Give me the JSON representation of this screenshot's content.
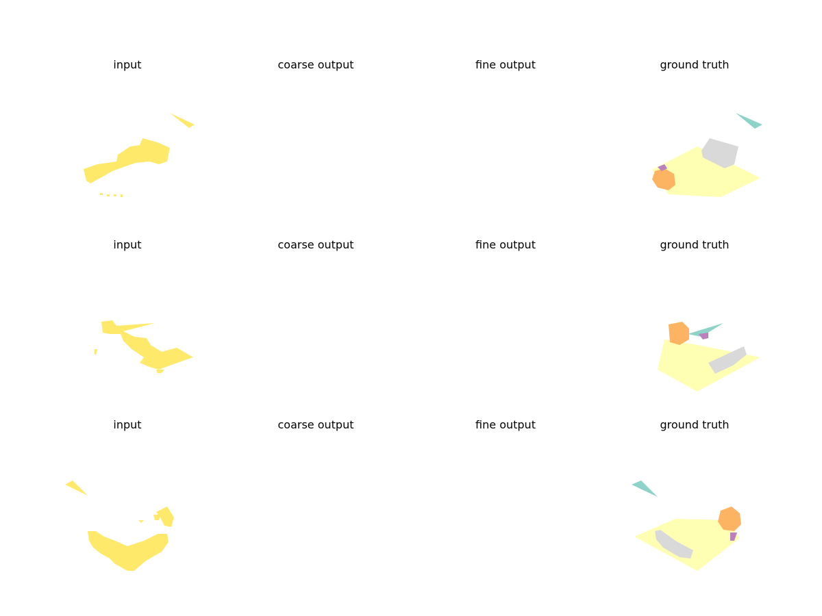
{
  "figure": {
    "rows": [
      {
        "titles": {
          "input": "input",
          "coarse": "coarse output",
          "fine": "fine output",
          "gt": "ground truth"
        }
      },
      {
        "titles": {
          "input": "input",
          "coarse": "coarse output",
          "fine": "fine output",
          "gt": "ground truth"
        }
      },
      {
        "titles": {
          "input": "input",
          "coarse": "coarse output",
          "fine": "fine output",
          "gt": "ground truth"
        }
      }
    ]
  },
  "colors": {
    "input_points": "#ffe96b",
    "gt_floor": "#ffffb3",
    "gt_wall": "#8dd3c7",
    "gt_sofa": "#fdb462",
    "gt_chair": "#bc80bd",
    "gt_table": "#d9d9d9"
  }
}
